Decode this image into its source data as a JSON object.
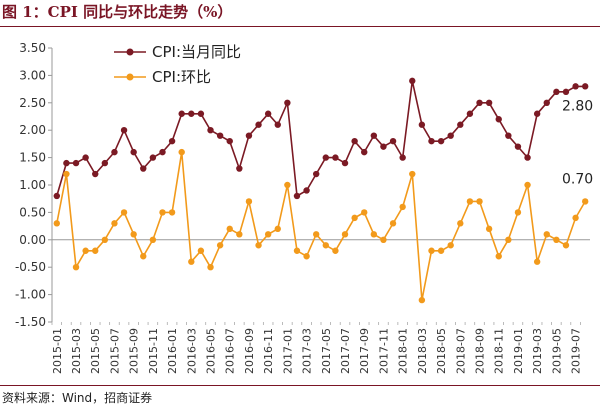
{
  "header": {
    "title": "图 1：CPI 同比与环比走势（%）"
  },
  "footer": {
    "source": "资料来源：Wind，招商证券"
  },
  "colors": {
    "yoy": "#7b1a24",
    "mom": "#f29a1b",
    "accent": "#7a1525"
  },
  "chart_data": {
    "type": "line",
    "title": "",
    "xlabel": "",
    "ylabel": "",
    "ylim": [
      -1.5,
      3.5
    ],
    "yticks": [
      "3.50",
      "3.00",
      "2.50",
      "2.00",
      "1.50",
      "1.00",
      "0.50",
      "0.00",
      "-0.50",
      "-1.00",
      "-1.50"
    ],
    "x": [
      "2015-01",
      "2015-02",
      "2015-03",
      "2015-04",
      "2015-05",
      "2015-06",
      "2015-07",
      "2015-08",
      "2015-09",
      "2015-10",
      "2015-11",
      "2015-12",
      "2016-01",
      "2016-02",
      "2016-03",
      "2016-04",
      "2016-05",
      "2016-06",
      "2016-07",
      "2016-08",
      "2016-09",
      "2016-10",
      "2016-11",
      "2016-12",
      "2017-01",
      "2017-02",
      "2017-03",
      "2017-04",
      "2017-05",
      "2017-06",
      "2017-07",
      "2017-08",
      "2017-09",
      "2017-10",
      "2017-11",
      "2017-12",
      "2018-01",
      "2018-02",
      "2018-03",
      "2018-04",
      "2018-05",
      "2018-06",
      "2018-07",
      "2018-08",
      "2018-09",
      "2018-10",
      "2018-11",
      "2018-12",
      "2019-01",
      "2019-02",
      "2019-03",
      "2019-04",
      "2019-05",
      "2019-06",
      "2019-07",
      "2019-08"
    ],
    "xtick_labels": [
      "2015-01",
      "2015-03",
      "2015-05",
      "2015-07",
      "2015-09",
      "2015-11",
      "2016-01",
      "2016-03",
      "2016-05",
      "2016-07",
      "2016-09",
      "2016-11",
      "2017-01",
      "2017-03",
      "2017-05",
      "2017-07",
      "2017-09",
      "2017-11",
      "2018-01",
      "2018-03",
      "2018-05",
      "2018-07",
      "2018-09",
      "2018-11",
      "2019-01",
      "2019-03",
      "2019-05",
      "2019-07"
    ],
    "series": [
      {
        "name": "CPI:当月同比",
        "values": [
          0.8,
          1.4,
          1.4,
          1.5,
          1.2,
          1.4,
          1.6,
          2.0,
          1.6,
          1.3,
          1.5,
          1.6,
          1.8,
          2.3,
          2.3,
          2.3,
          2.0,
          1.9,
          1.8,
          1.3,
          1.9,
          2.1,
          2.3,
          2.1,
          2.5,
          0.8,
          0.9,
          1.2,
          1.5,
          1.5,
          1.4,
          1.8,
          1.6,
          1.9,
          1.7,
          1.8,
          1.5,
          2.9,
          2.1,
          1.8,
          1.8,
          1.9,
          2.1,
          2.3,
          2.5,
          2.5,
          2.2,
          1.9,
          1.7,
          1.5,
          2.3,
          2.5,
          2.7,
          2.7,
          2.8,
          2.8
        ]
      },
      {
        "name": "CPI:环比",
        "values": [
          0.3,
          1.2,
          -0.5,
          -0.2,
          -0.2,
          0.0,
          0.3,
          0.5,
          0.1,
          -0.3,
          0.0,
          0.5,
          0.5,
          1.6,
          -0.4,
          -0.2,
          -0.5,
          -0.1,
          0.2,
          0.1,
          0.7,
          -0.1,
          0.1,
          0.2,
          1.0,
          -0.2,
          -0.3,
          0.1,
          -0.1,
          -0.2,
          0.1,
          0.4,
          0.5,
          0.1,
          0.0,
          0.3,
          0.6,
          1.2,
          -1.1,
          -0.2,
          -0.2,
          -0.1,
          0.3,
          0.7,
          0.7,
          0.2,
          -0.3,
          0.0,
          0.5,
          1.0,
          -0.4,
          0.1,
          0.0,
          -0.1,
          0.4,
          0.7
        ]
      }
    ],
    "annotations": [
      {
        "series": "CPI:当月同比",
        "text": "2.80"
      },
      {
        "series": "CPI:环比",
        "text": "0.70"
      }
    ],
    "legend": {
      "position": "top-left"
    },
    "grid": false
  }
}
